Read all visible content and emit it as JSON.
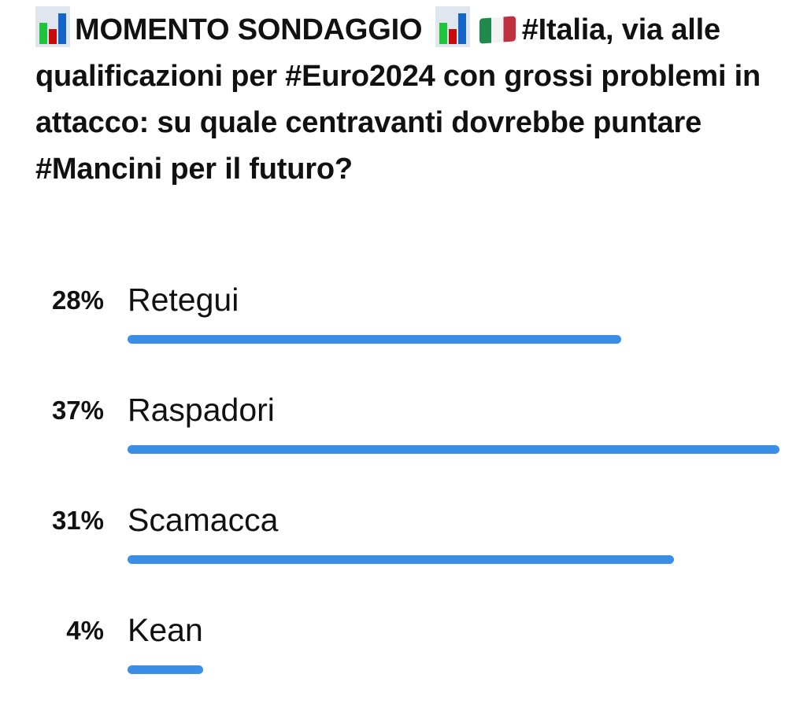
{
  "question": {
    "prefix_icon": "bar-chart-emoji",
    "title": "MOMENTO SONDAGGIO",
    "flag_icon": "italy-flag-emoji",
    "text": "#Italia, via alle qualificazioni per #Euro2024 con grossi problemi in attacco: su quale centravanti dovrebbe puntare #Mancini per il futuro?"
  },
  "accent_color": "#3a8ee6",
  "options": [
    {
      "percent_label": "28%",
      "label": "Retegui",
      "percent": 28
    },
    {
      "percent_label": "37%",
      "label": "Raspadori",
      "percent": 37
    },
    {
      "percent_label": "31%",
      "label": "Scamacca",
      "percent": 31
    },
    {
      "percent_label": "4%",
      "label": "Kean",
      "percent": 4
    }
  ]
}
